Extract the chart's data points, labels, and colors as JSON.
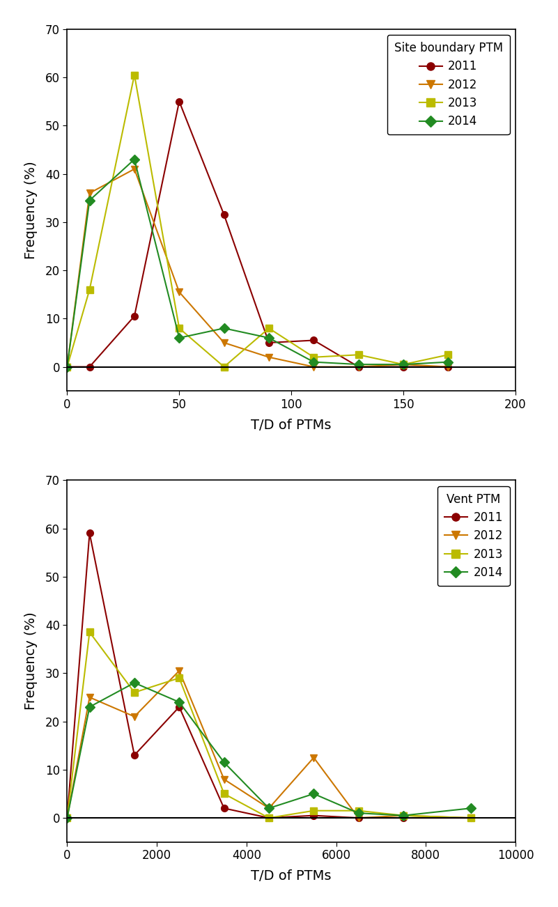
{
  "plot1": {
    "title": "Site boundary PTM",
    "xlabel": "T/D of PTMs",
    "ylabel": "Frequency (%)",
    "xlim": [
      0,
      200
    ],
    "ylim": [
      -5,
      70
    ],
    "yticks": [
      0,
      10,
      20,
      30,
      40,
      50,
      60,
      70
    ],
    "xticks": [
      0,
      50,
      100,
      150,
      200
    ],
    "series": {
      "2011": {
        "x": [
          0,
          10,
          30,
          50,
          70,
          90,
          110,
          130,
          150,
          170
        ],
        "y": [
          0,
          0,
          10.5,
          55,
          31.5,
          5,
          5.5,
          0,
          0,
          0
        ],
        "color": "#8B0000",
        "marker": "o",
        "markersize": 7
      },
      "2012": {
        "x": [
          0,
          10,
          30,
          50,
          70,
          90,
          110,
          130,
          150,
          170
        ],
        "y": [
          0,
          36,
          41,
          15.5,
          5,
          2,
          0,
          0,
          0.5,
          0
        ],
        "color": "#CC7700",
        "marker": "v",
        "markersize": 7
      },
      "2013": {
        "x": [
          0,
          10,
          30,
          50,
          70,
          90,
          110,
          130,
          150,
          170
        ],
        "y": [
          0,
          16,
          60.5,
          8,
          0,
          8,
          2,
          2.5,
          0.5,
          2.5
        ],
        "color": "#BBBB00",
        "marker": "s",
        "markersize": 7
      },
      "2014": {
        "x": [
          0,
          10,
          30,
          50,
          70,
          90,
          110,
          130,
          150,
          170
        ],
        "y": [
          0,
          34.5,
          43,
          6,
          8,
          6,
          1,
          0.5,
          0.5,
          1
        ],
        "color": "#228B22",
        "marker": "D",
        "markersize": 7
      }
    }
  },
  "plot2": {
    "title": "Vent PTM",
    "xlabel": "T/D of PTMs",
    "ylabel": "Frequency (%)",
    "xlim": [
      0,
      10000
    ],
    "ylim": [
      -5,
      70
    ],
    "yticks": [
      0,
      10,
      20,
      30,
      40,
      50,
      60,
      70
    ],
    "xticks": [
      0,
      2000,
      4000,
      6000,
      8000,
      10000
    ],
    "series": {
      "2011": {
        "x": [
          0,
          500,
          1500,
          2500,
          3500,
          4500,
          5500,
          6500,
          7500,
          9000
        ],
        "y": [
          0,
          59,
          13,
          23,
          2,
          0,
          0.5,
          0,
          0,
          0
        ],
        "color": "#8B0000",
        "marker": "o",
        "markersize": 7
      },
      "2012": {
        "x": [
          0,
          500,
          1500,
          2500,
          3500,
          4500,
          5500,
          6500,
          7500,
          9000
        ],
        "y": [
          0,
          25,
          21,
          30.5,
          8,
          2,
          12.5,
          0,
          0.5,
          0
        ],
        "color": "#CC7700",
        "marker": "v",
        "markersize": 7
      },
      "2013": {
        "x": [
          0,
          500,
          1500,
          2500,
          3500,
          4500,
          5500,
          6500,
          7500,
          9000
        ],
        "y": [
          0,
          38.5,
          26,
          29,
          5,
          0,
          1.5,
          1.5,
          0.5,
          0
        ],
        "color": "#BBBB00",
        "marker": "s",
        "markersize": 7
      },
      "2014": {
        "x": [
          0,
          500,
          1500,
          2500,
          3500,
          4500,
          5500,
          6500,
          7500,
          9000
        ],
        "y": [
          0,
          23,
          28,
          24,
          11.5,
          2,
          5,
          1,
          0.5,
          2
        ],
        "color": "#228B22",
        "marker": "D",
        "markersize": 7
      }
    }
  },
  "background_color": "#ffffff",
  "legend_labels": [
    "2011",
    "2012",
    "2013",
    "2014"
  ],
  "legend_colors": [
    "#8B0000",
    "#CC7700",
    "#BBBB00",
    "#228B22"
  ],
  "legend_markers": [
    "o",
    "v",
    "s",
    "D"
  ]
}
